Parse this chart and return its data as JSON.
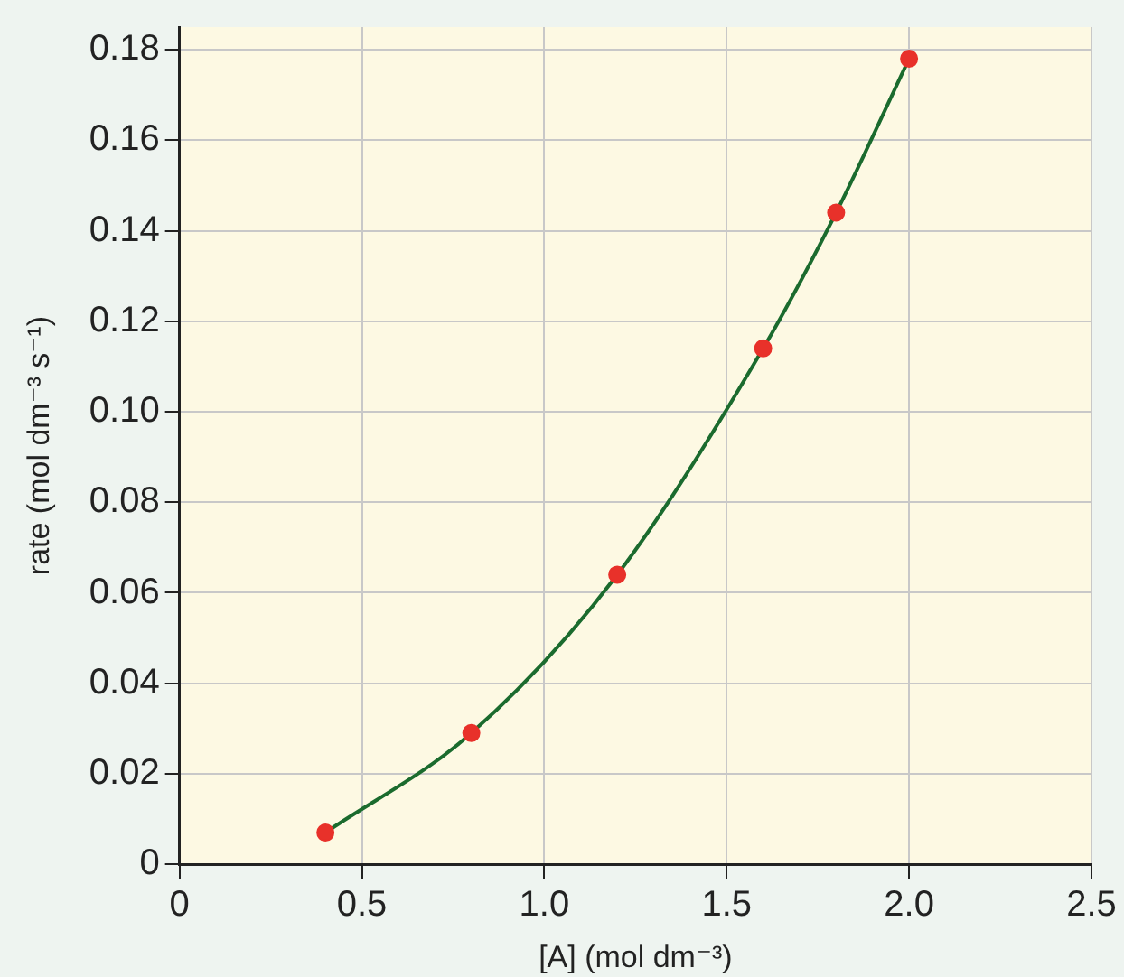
{
  "chart_data": {
    "type": "scatter",
    "xlabel": "[A] (mol dm⁻³)",
    "ylabel": "rate (mol dm⁻³ s⁻¹)",
    "x": [
      0.4,
      0.8,
      1.2,
      1.6,
      1.8,
      2.0
    ],
    "series": [
      {
        "type": "line",
        "color": "#1b6b2e",
        "values": [
          0.007,
          0.029,
          0.064,
          0.114,
          0.144,
          0.178
        ],
        "marker": "none"
      },
      {
        "type": "scatter",
        "color": "#e8312a",
        "values": [
          0.007,
          0.029,
          0.064,
          0.114,
          0.144,
          0.178
        ],
        "marker": "circle"
      }
    ],
    "xlim": [
      0,
      2.5
    ],
    "ylim": [
      0,
      0.185
    ],
    "xticks": [
      0,
      0.5,
      {
        "value": 1,
        "label": "1.0"
      },
      1.5,
      {
        "value": 2,
        "label": "2.0"
      },
      2.5
    ],
    "yticks": [
      0,
      0.02,
      0.04,
      0.06,
      0.08,
      {
        "value": 0.1,
        "label": "0.10"
      },
      0.12,
      0.14,
      0.16,
      0.18
    ],
    "grid": true,
    "legend": false
  }
}
